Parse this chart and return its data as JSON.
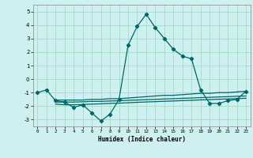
{
  "title": "",
  "xlabel": "Humidex (Indice chaleur)",
  "background_color": "#cff0f0",
  "grid_color": "#aaddcc",
  "line_color": "#006666",
  "xlim": [
    -0.5,
    23.5
  ],
  "ylim": [
    -3.5,
    5.5
  ],
  "yticks": [
    -3,
    -2,
    -1,
    0,
    1,
    2,
    3,
    4,
    5
  ],
  "xticks": [
    0,
    1,
    2,
    3,
    4,
    5,
    6,
    7,
    8,
    9,
    10,
    11,
    12,
    13,
    14,
    15,
    16,
    17,
    18,
    19,
    20,
    21,
    22,
    23
  ],
  "main_line_x": [
    0,
    1,
    2,
    3,
    4,
    5,
    6,
    7,
    8,
    9,
    10,
    11,
    12,
    13,
    14,
    15,
    16,
    17,
    18,
    19,
    20,
    21,
    22,
    23
  ],
  "main_line_y": [
    -1.0,
    -0.8,
    -1.6,
    -1.7,
    -2.1,
    -1.9,
    -2.5,
    -3.1,
    -2.6,
    -1.5,
    2.5,
    3.9,
    4.8,
    3.8,
    3.0,
    2.2,
    1.7,
    1.5,
    -0.8,
    -1.8,
    -1.8,
    -1.6,
    -1.5,
    -0.9
  ],
  "line2_x": [
    2,
    3,
    4,
    5,
    6,
    7,
    8,
    9,
    10,
    11,
    12,
    13,
    14,
    15,
    16,
    17,
    18,
    19,
    20,
    21,
    22,
    23
  ],
  "line2_y": [
    -1.55,
    -1.55,
    -1.55,
    -1.55,
    -1.5,
    -1.5,
    -1.45,
    -1.45,
    -1.4,
    -1.35,
    -1.3,
    -1.25,
    -1.2,
    -1.2,
    -1.15,
    -1.1,
    -1.05,
    -1.05,
    -1.0,
    -1.0,
    -0.95,
    -0.9
  ],
  "line3_x": [
    2,
    3,
    4,
    5,
    6,
    7,
    8,
    9,
    10,
    11,
    12,
    13,
    14,
    15,
    16,
    17,
    18,
    19,
    20,
    21,
    22,
    23
  ],
  "line3_y": [
    -1.7,
    -1.7,
    -1.7,
    -1.68,
    -1.65,
    -1.65,
    -1.62,
    -1.6,
    -1.57,
    -1.55,
    -1.52,
    -1.5,
    -1.47,
    -1.45,
    -1.42,
    -1.4,
    -1.37,
    -1.35,
    -1.32,
    -1.3,
    -1.27,
    -1.25
  ],
  "line4_x": [
    2,
    3,
    4,
    5,
    6,
    7,
    8,
    9,
    10,
    11,
    12,
    13,
    14,
    15,
    16,
    17,
    18,
    19,
    20,
    21,
    22,
    23
  ],
  "line4_y": [
    -1.85,
    -1.9,
    -1.9,
    -1.88,
    -1.85,
    -1.83,
    -1.8,
    -1.78,
    -1.75,
    -1.72,
    -1.69,
    -1.67,
    -1.64,
    -1.62,
    -1.59,
    -1.57,
    -1.54,
    -1.52,
    -1.49,
    -1.47,
    -1.44,
    -1.42
  ]
}
